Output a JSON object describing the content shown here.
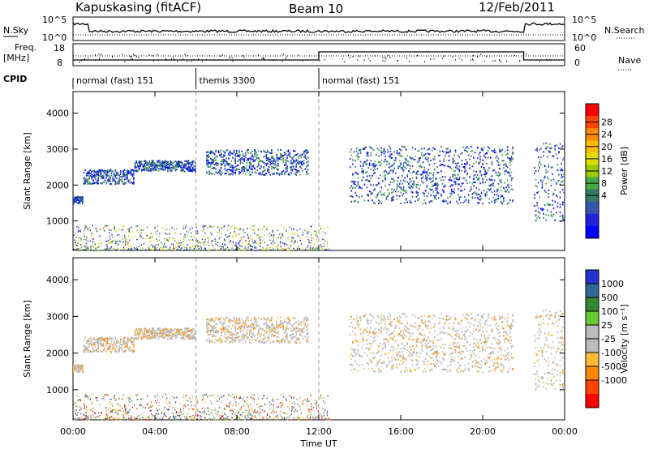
{
  "header": {
    "station": "Kapuskasing (fitACF)",
    "beam": "Beam 10",
    "date": "12/Feb/2011"
  },
  "top_panels": {
    "nsky_label": "N.Sky",
    "nsky_ticks": [
      "10^5",
      "10^0"
    ],
    "nsearch_label": "N.Search",
    "nsearch_ticks": [
      "10^5",
      "10^0"
    ],
    "freq_label_1": "Freq.",
    "freq_label_2": "[MHz]",
    "freq_ticks": [
      "18",
      "8"
    ],
    "nave_label": "Nave",
    "nave_ticks": [
      "60",
      "0"
    ],
    "cpid_label": "CPID",
    "cpid_segments": [
      {
        "label": "normal (fast) 151",
        "start": 0,
        "end": 6
      },
      {
        "label": "themis 3300",
        "start": 6,
        "end": 12
      },
      {
        "label": "normal (fast) 151",
        "start": 12,
        "end": 24
      }
    ]
  },
  "power_scale": {
    "label": "Power [dB]",
    "ticks": [
      "28",
      "24",
      "20",
      "16",
      "12",
      "8",
      "4"
    ],
    "colors": [
      "#ff0000",
      "#ff4400",
      "#ff8800",
      "#ffbb00",
      "#dddd00",
      "#99cc00",
      "#44aa44",
      "#337766",
      "#3355aa",
      "#2222dd",
      "#0000ff"
    ]
  },
  "velocity_scale": {
    "label": "Velocity [m s⁻¹]",
    "ticks": [
      "1000",
      "500",
      "100",
      "25",
      "-25",
      "-100",
      "-500",
      "-1000"
    ],
    "colors": [
      "#2233cc",
      "#336699",
      "#338833",
      "#66cc33",
      "#bbbbbb",
      "#bbbbbb",
      "#ffbb33",
      "#ff8800",
      "#ff4400",
      "#ff0000"
    ]
  },
  "chart_data": {
    "type": "heatmap",
    "xlabel": "Time UT",
    "x_ticks": [
      "00:00",
      "04:00",
      "08:00",
      "12:00",
      "16:00",
      "20:00",
      "00:00"
    ],
    "xlim": [
      0,
      24
    ],
    "ylabel": "Slant Range [km]",
    "y_ticks": [
      1000,
      2000,
      3000,
      4000
    ],
    "ylim": [
      180,
      4600
    ],
    "panels": [
      "Power [dB]",
      "Velocity [m s⁻¹]"
    ],
    "backscatter_bands": [
      {
        "t_start": 0.0,
        "t_end": 0.5,
        "range_low": 1500,
        "range_high": 1700
      },
      {
        "t_start": 0.5,
        "t_end": 3.0,
        "range_low": 2050,
        "range_high": 2450
      },
      {
        "t_start": 3.0,
        "t_end": 6.0,
        "range_low": 2400,
        "range_high": 2700
      },
      {
        "t_start": 6.5,
        "t_end": 11.5,
        "range_low": 2300,
        "range_high": 3000
      },
      {
        "t_start": 13.5,
        "t_end": 21.5,
        "range_low": 1500,
        "range_high": 3100
      },
      {
        "t_start": 22.5,
        "t_end": 24.0,
        "range_low": 1000,
        "range_high": 3200
      }
    ],
    "ground_scatter": {
      "t_start": 0.0,
      "t_end": 12.5,
      "range_low": 200,
      "range_high": 900
    }
  }
}
